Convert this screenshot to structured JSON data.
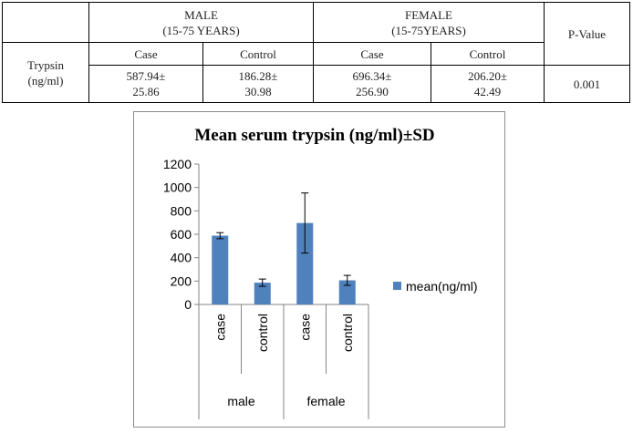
{
  "table": {
    "male_header": "MALE\n(15-75 YEARS)",
    "female_header": "FEMALE\n(15-75YEARS)",
    "pvalue_header": "P-Value",
    "row_label": "Trypsin\n(ng/ml)",
    "sub_headers": [
      "Case",
      "Control",
      "Case",
      "Control"
    ],
    "cells": [
      "587.94±\n25.86",
      "186.28±\n30.98",
      "696.34±\n256.90",
      "206.20±\n42.49"
    ],
    "pvalue": "0.001"
  },
  "chart_data": {
    "type": "bar",
    "title": "Mean serum trypsin (ng/ml)±SD",
    "categories": [
      "case",
      "control",
      "case",
      "control"
    ],
    "groups": [
      "male",
      "female"
    ],
    "series": [
      {
        "name": "mean(ng/ml)",
        "values": [
          587.94,
          186.28,
          696.34,
          206.2
        ],
        "errors": [
          25.86,
          30.98,
          256.9,
          42.49
        ]
      }
    ],
    "y_ticks": [
      "0",
      "200",
      "400",
      "600",
      "800",
      "1000",
      "1200"
    ],
    "ylim": [
      0,
      1200
    ],
    "legend_position": "right",
    "grid": false,
    "bar_color": "#4f81bd"
  }
}
